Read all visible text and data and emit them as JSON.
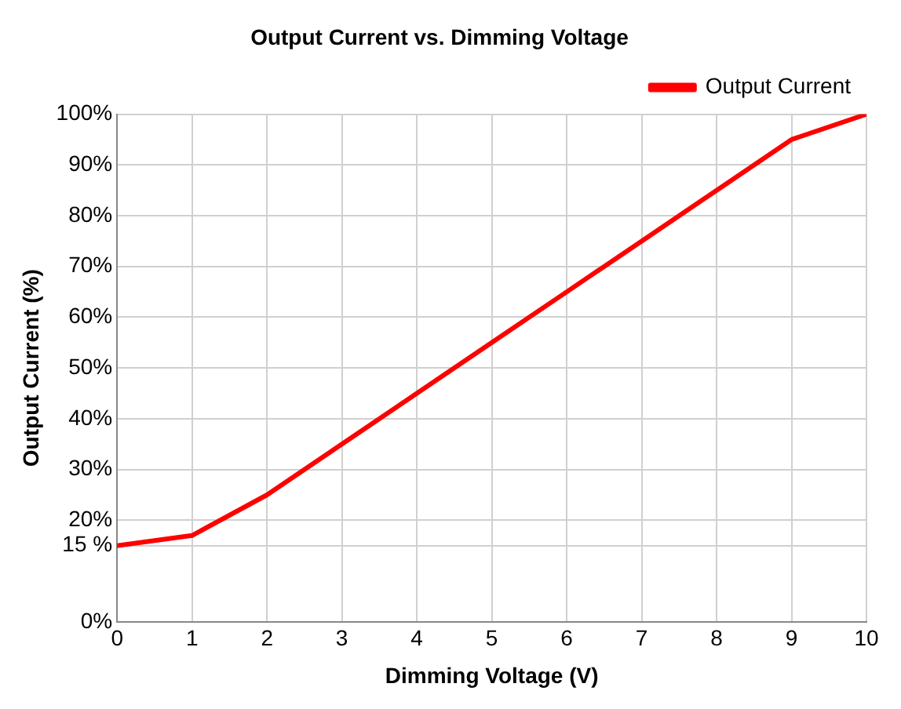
{
  "chart_data": {
    "type": "line",
    "title": "Output Current vs. Dimming Voltage",
    "xlabel": "Dimming Voltage (V)",
    "ylabel": "Output Current (%)",
    "x": [
      0,
      1,
      2,
      3,
      4,
      5,
      6,
      7,
      8,
      9,
      10
    ],
    "series": [
      {
        "name": "Output Current",
        "color": "#ff0000",
        "values": [
          15,
          17,
          25,
          35,
          45,
          55,
          65,
          75,
          85,
          95,
          100
        ]
      }
    ],
    "xlim": [
      0,
      10
    ],
    "xticks": [
      0,
      1,
      2,
      3,
      4,
      5,
      6,
      7,
      8,
      9,
      10
    ],
    "ylim": [
      0,
      100
    ],
    "yticks": [
      {
        "value": 0,
        "label": "0%"
      },
      {
        "value": 15,
        "label": "15 %"
      },
      {
        "value": 20,
        "label": "20%"
      },
      {
        "value": 30,
        "label": "30%"
      },
      {
        "value": 40,
        "label": "40%"
      },
      {
        "value": 50,
        "label": "50%"
      },
      {
        "value": 60,
        "label": "60%"
      },
      {
        "value": 70,
        "label": "70%"
      },
      {
        "value": 80,
        "label": "80%"
      },
      {
        "value": 90,
        "label": "90%"
      },
      {
        "value": 100,
        "label": "100%"
      }
    ],
    "grid": true,
    "legend": "top right",
    "marker": "none",
    "line_style": "solid"
  }
}
